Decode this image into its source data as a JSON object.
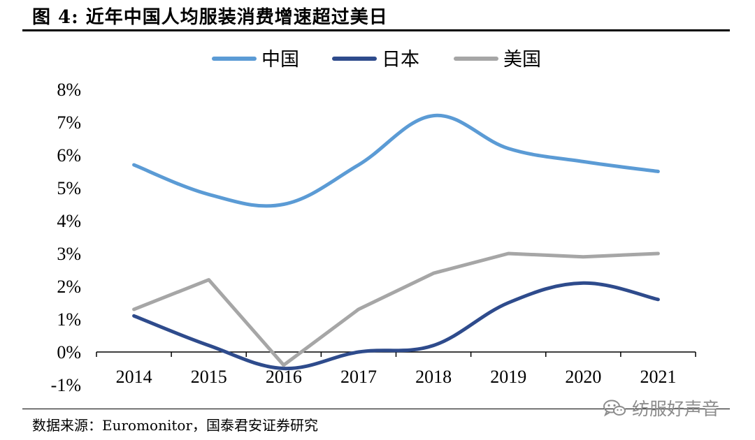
{
  "header": {
    "title": "图  4:  近年中国人均服装消费增速超过美日"
  },
  "footer": {
    "source": "数据来源：Euromonitor，国泰君安证券研究",
    "watermark": "纺服好声音"
  },
  "chart_data": {
    "type": "line",
    "title": "近年中国人均服装消费增速超过美日",
    "categories": [
      "2014",
      "2015",
      "2016",
      "2017",
      "2018",
      "2019",
      "2020",
      "2021"
    ],
    "series": [
      {
        "name": "中国",
        "color": "#5b9bd5",
        "values": [
          5.7,
          4.8,
          4.5,
          5.7,
          7.2,
          6.2,
          5.8,
          5.5
        ]
      },
      {
        "name": "日本",
        "color": "#2e4b8c",
        "values": [
          1.1,
          0.2,
          -0.5,
          0.0,
          0.2,
          1.5,
          2.1,
          1.6
        ]
      },
      {
        "name": "美国",
        "color": "#a6a6a6",
        "values": [
          1.3,
          2.2,
          -0.4,
          1.3,
          2.4,
          3.0,
          2.9,
          3.0
        ]
      }
    ],
    "y_ticks": [
      "-1%",
      "0%",
      "1%",
      "2%",
      "3%",
      "4%",
      "5%",
      "6%",
      "7%",
      "8%"
    ],
    "ylim": [
      -1,
      8
    ],
    "xlabel": "",
    "ylabel": "",
    "legend_position": "top-center",
    "grid": false
  }
}
